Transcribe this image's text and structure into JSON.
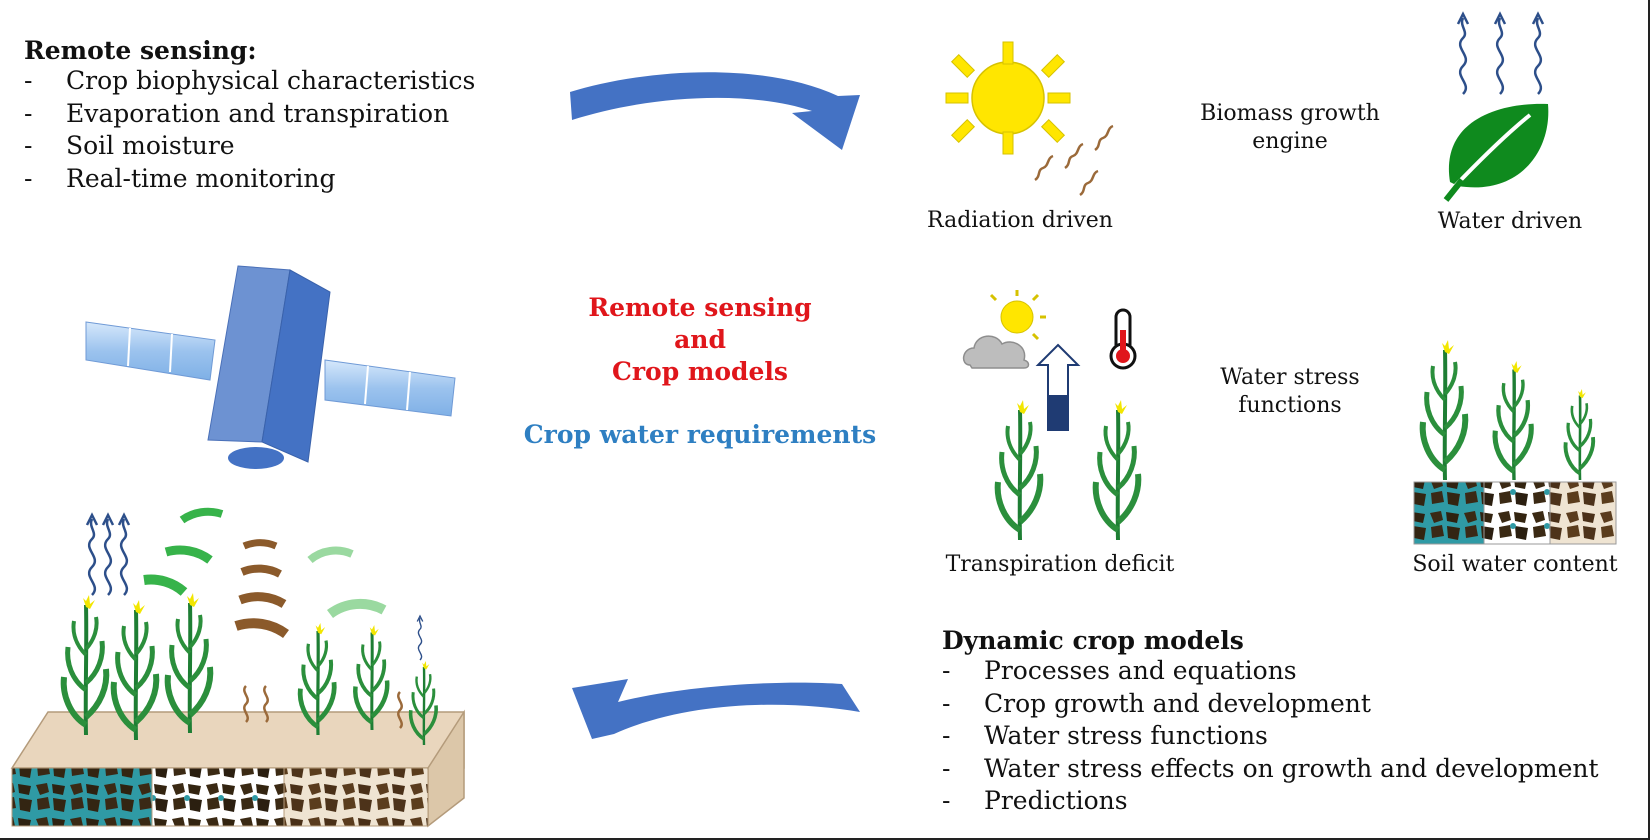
{
  "remote_sensing": {
    "title": "Remote sensing:",
    "dash": "-",
    "items": [
      "Crop biophysical characteristics",
      "Evaporation and transpiration",
      "Soil moisture",
      "Real-time monitoring"
    ]
  },
  "center": {
    "line1": "Remote sensing",
    "line2": "and",
    "line3": "Crop models",
    "subtitle": "Crop water requirements"
  },
  "biomass": {
    "label_line1": "Biomass growth",
    "label_line2": "engine",
    "radiation": "Radiation driven",
    "water": "Water driven"
  },
  "water_stress": {
    "label_line1": "Water stress",
    "label_line2": "functions",
    "transpiration": "Transpiration deficit",
    "soil": "Soil water content"
  },
  "dynamic_models": {
    "title": "Dynamic crop models",
    "dash": "-",
    "items": [
      "Processes and equations",
      "Crop growth and development",
      "Water stress functions",
      "Water stress effects on growth and development",
      "Predictions"
    ]
  },
  "colors": {
    "arrow": "#4472c4",
    "red": "#e0161b",
    "blue": "#2e7fc2",
    "leaf": "#1e7e34",
    "sun": "#ffe600"
  }
}
